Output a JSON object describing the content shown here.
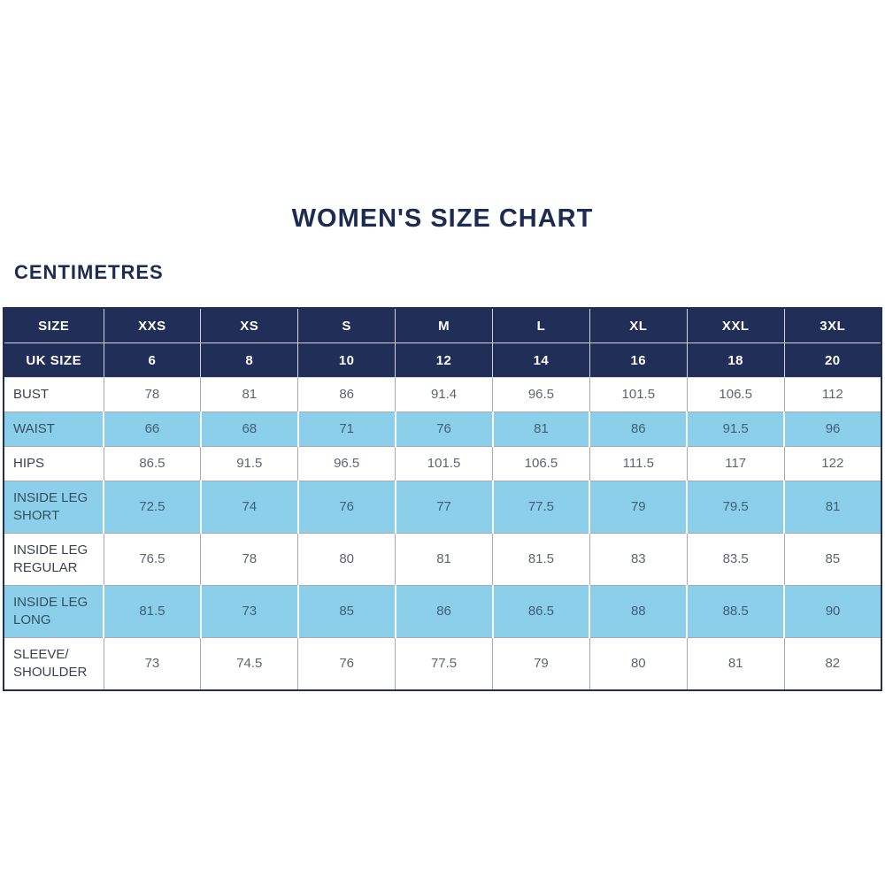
{
  "header": {
    "title": "WOMEN'S SIZE CHART",
    "unit_label": "CENTIMETRES"
  },
  "colors": {
    "navy": "#202e58",
    "light_blue": "#8ccfeb",
    "title_color": "#1c2b52",
    "label_color": "#3c414d",
    "value_color": "#5d6570",
    "highlight_value_color": "#3f5f75",
    "highlight_label_color": "#35505f"
  },
  "table": {
    "header_rows": [
      {
        "label": "SIZE",
        "values": [
          "XXS",
          "XS",
          "S",
          "M",
          "L",
          "XL",
          "XXL",
          "3XL"
        ]
      },
      {
        "label": "UK SIZE",
        "values": [
          "6",
          "8",
          "10",
          "12",
          "14",
          "16",
          "18",
          "20"
        ]
      }
    ],
    "rows": [
      {
        "label": "BUST",
        "highlight": false,
        "values": [
          "78",
          "81",
          "86",
          "91.4",
          "96.5",
          "101.5",
          "106.5",
          "112"
        ]
      },
      {
        "label": "WAIST",
        "highlight": true,
        "values": [
          "66",
          "68",
          "71",
          "76",
          "81",
          "86",
          "91.5",
          "96"
        ]
      },
      {
        "label": "HIPS",
        "highlight": false,
        "values": [
          "86.5",
          "91.5",
          "96.5",
          "101.5",
          "106.5",
          "111.5",
          "117",
          "122"
        ]
      },
      {
        "label": "INSIDE LEG SHORT",
        "highlight": true,
        "values": [
          "72.5",
          "74",
          "76",
          "77",
          "77.5",
          "79",
          "79.5",
          "81"
        ]
      },
      {
        "label": "INSIDE LEG REGULAR",
        "highlight": false,
        "values": [
          "76.5",
          "78",
          "80",
          "81",
          "81.5",
          "83",
          "83.5",
          "85"
        ]
      },
      {
        "label": "INSIDE LEG LONG",
        "highlight": true,
        "values": [
          "81.5",
          "73",
          "85",
          "86",
          "86.5",
          "88",
          "88.5",
          "90"
        ]
      },
      {
        "label": "SLEEVE/ SHOULDER",
        "highlight": false,
        "values": [
          "73",
          "74.5",
          "76",
          "77.5",
          "79",
          "80",
          "81",
          "82"
        ]
      }
    ]
  }
}
